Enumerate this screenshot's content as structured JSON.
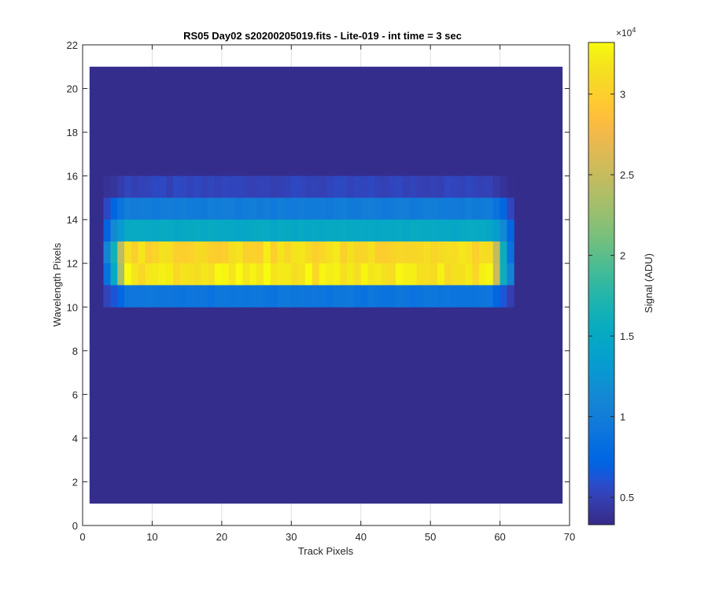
{
  "chart_data": {
    "type": "heatmap",
    "title": "RS05 Day02  s20200205019.fits - Lite-019 - int time = 3 sec",
    "xlabel": "Track Pixels",
    "ylabel": "Wavelength Pixels",
    "xlim": [
      0,
      70
    ],
    "ylim": [
      0,
      22
    ],
    "xticks": [
      0,
      10,
      20,
      30,
      40,
      50,
      60,
      70
    ],
    "yticks": [
      0,
      2,
      4,
      6,
      8,
      10,
      12,
      14,
      16,
      18,
      20,
      22
    ],
    "grid": true,
    "image_extent": {
      "x": [
        1,
        69
      ],
      "y": [
        1,
        21
      ]
    },
    "colormap": "parula",
    "colorbar": {
      "label": "Signal (ADU)",
      "exponent_label": "×10",
      "exponent": "4",
      "clim": [
        3300,
        33200
      ],
      "ticks": [
        5000,
        10000,
        15000,
        20000,
        25000,
        30000
      ],
      "tick_labels": [
        "0.5",
        "1",
        "1.5",
        "2",
        "2.5",
        "3"
      ]
    },
    "background_value": 3500,
    "rows": [
      {
        "y": [
          15,
          16
        ],
        "x": [
          3,
          62
        ],
        "value": 5200,
        "edge": 4200
      },
      {
        "y": [
          14,
          15
        ],
        "x": [
          3,
          62
        ],
        "value": 9800,
        "edge": 7500
      },
      {
        "y": [
          13,
          14
        ],
        "x": [
          3,
          62
        ],
        "value": 15000,
        "edge": 11000
      },
      {
        "y": [
          12,
          13
        ],
        "x": [
          3,
          62
        ],
        "value": 31000,
        "edge": 16000
      },
      {
        "y": [
          11,
          12
        ],
        "x": [
          3,
          62
        ],
        "value": 32000,
        "edge": 16000
      },
      {
        "y": [
          10,
          11
        ],
        "x": [
          3,
          62
        ],
        "value": 9000,
        "edge": 6500
      }
    ]
  }
}
